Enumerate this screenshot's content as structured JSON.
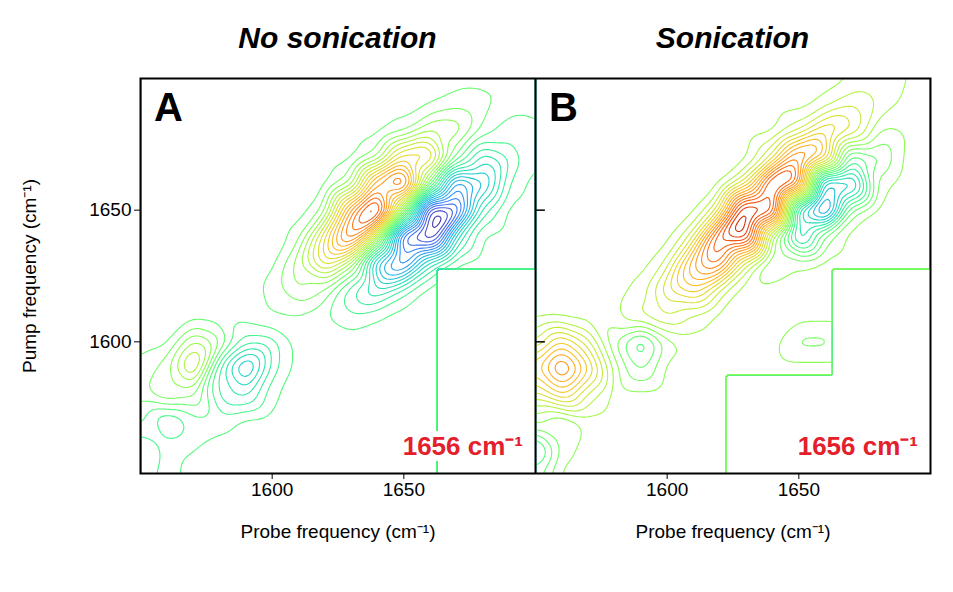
{
  "chart_data": [
    {
      "type": "contour",
      "title": "No sonication",
      "panel": "A",
      "annotation": "1656 cm⁻¹",
      "xlabel": "Probe frequency (cm⁻¹)",
      "ylabel": "Pump frequency (cm⁻¹)",
      "xlim": [
        1550,
        1700
      ],
      "ylim": [
        1550,
        1700
      ],
      "xticks": [
        1600,
        1650
      ],
      "yticks": [
        1600,
        1650
      ],
      "color": "turbo",
      "zlim": [
        -1,
        1
      ],
      "x": [
        1550,
        1560,
        1570,
        1580,
        1590,
        1600,
        1610,
        1620,
        1630,
        1640,
        1650,
        1660,
        1670,
        1680,
        1690,
        1700
      ],
      "y": [
        1700,
        1690,
        1680,
        1670,
        1660,
        1650,
        1640,
        1630,
        1620,
        1610,
        1600,
        1590,
        1580,
        1570,
        1560,
        1550
      ],
      "z": [
        [
          -0.15,
          -0.15,
          -0.15,
          -0.15,
          -0.15,
          -0.15,
          -0.15,
          -0.15,
          -0.15,
          -0.15,
          -0.15,
          -0.15,
          -0.15,
          -0.14,
          -0.14,
          -0.15
        ],
        [
          -0.15,
          -0.15,
          -0.15,
          -0.15,
          -0.15,
          -0.15,
          -0.15,
          -0.15,
          -0.15,
          -0.15,
          -0.15,
          -0.13,
          -0.09,
          -0.11,
          -0.15,
          -0.16
        ],
        [
          -0.15,
          -0.15,
          -0.15,
          -0.15,
          -0.15,
          -0.15,
          -0.15,
          -0.15,
          -0.15,
          -0.15,
          -0.1,
          0.04,
          0.02,
          -0.15,
          -0.21,
          -0.18
        ],
        [
          -0.15,
          -0.15,
          -0.15,
          -0.15,
          -0.15,
          -0.15,
          -0.15,
          -0.15,
          -0.15,
          -0.06,
          0.28,
          0.3,
          -0.13,
          -0.37,
          -0.27,
          -0.17
        ],
        [
          -0.15,
          -0.15,
          -0.15,
          -0.15,
          -0.15,
          -0.15,
          -0.15,
          -0.15,
          -0.05,
          0.47,
          0.66,
          -0.08,
          -0.69,
          -0.52,
          -0.21,
          -0.15
        ],
        [
          -0.15,
          -0.15,
          -0.15,
          -0.15,
          -0.15,
          -0.15,
          -0.15,
          -0.07,
          0.45,
          0.81,
          0,
          -0.94,
          -0.86,
          -0.29,
          -0.15,
          -0.15
        ],
        [
          -0.15,
          -0.15,
          -0.15,
          -0.15,
          -0.15,
          -0.15,
          -0.11,
          0.23,
          0.6,
          0.05,
          -0.85,
          -0.98,
          -0.36,
          -0.16,
          -0.15,
          -0.15
        ],
        [
          -0.15,
          -0.15,
          -0.15,
          -0.15,
          -0.15,
          -0.15,
          0.01,
          0.24,
          0.01,
          -0.53,
          -0.74,
          -0.34,
          -0.16,
          -0.15,
          -0.15,
          -0.15
        ],
        [
          -0.15,
          -0.15,
          -0.15,
          -0.15,
          -0.15,
          -0.11,
          -0.01,
          -0.07,
          -0.27,
          -0.4,
          -0.25,
          -0.15,
          -0.15,
          -0.15,
          -0.15,
          -0.15
        ],
        [
          -0.15,
          -0.15,
          -0.15,
          -0.15,
          -0.15,
          -0.12,
          -0.13,
          -0.17,
          -0.22,
          -0.18,
          -0.15,
          -0.15,
          -0.15,
          -0.15,
          -0.15,
          -0.15
        ],
        [
          -0.15,
          -0.15,
          0.05,
          -0.05,
          -0.25,
          -0.25,
          -0.15,
          -0.16,
          -0.15,
          -0.15,
          -0.15,
          -0.15,
          -0.15,
          -0.15,
          -0.15,
          -0.15
        ],
        [
          -0.12,
          -0.05,
          0.2,
          -0.3,
          -0.55,
          -0.25,
          -0.15,
          -0.15,
          -0.15,
          -0.15,
          -0.15,
          -0.15,
          -0.15,
          -0.15,
          -0.15,
          -0.15
        ],
        [
          -0.1,
          0,
          -0.05,
          -0.3,
          -0.35,
          -0.18,
          -0.15,
          -0.15,
          -0.15,
          -0.15,
          -0.15,
          -0.15,
          -0.15,
          -0.15,
          -0.15,
          -0.15
        ],
        [
          -0.15,
          -0.3,
          -0.2,
          -0.2,
          -0.15,
          -0.15,
          -0.15,
          -0.15,
          -0.15,
          -0.15,
          -0.15,
          -0.15,
          -0.15,
          -0.15,
          -0.15,
          -0.15
        ],
        [
          -0.3,
          -0.2,
          -0.18,
          -0.15,
          -0.15,
          -0.15,
          -0.15,
          -0.15,
          -0.15,
          -0.15,
          -0.15,
          -0.15,
          -0.15,
          -0.15,
          -0.15,
          -0.15
        ],
        [
          -0.25,
          -0.2,
          -0.15,
          -0.15,
          -0.15,
          -0.15,
          -0.15,
          -0.15,
          -0.15,
          -0.15,
          -0.15,
          -0.15,
          -0.15,
          -0.15,
          -0.15,
          -0.15
        ]
      ]
    },
    {
      "type": "contour",
      "title": "Sonication",
      "panel": "B",
      "annotation": "1656 cm⁻¹",
      "xlabel": "Probe frequency (cm⁻¹)",
      "tick_labels": "x",
      "xlim": [
        1550,
        1700
      ],
      "ylim": [
        1550,
        1700
      ],
      "xticks": [
        1600,
        1650
      ],
      "yticks": [
        1600,
        1650
      ],
      "color": "turbo",
      "zlim": [
        -1,
        1
      ],
      "x": [
        1550,
        1560,
        1570,
        1580,
        1590,
        1600,
        1610,
        1620,
        1630,
        1640,
        1650,
        1660,
        1670,
        1680,
        1690,
        1700
      ],
      "y": [
        1700,
        1690,
        1680,
        1670,
        1660,
        1650,
        1640,
        1630,
        1620,
        1610,
        1600,
        1590,
        1580,
        1570,
        1560,
        1550
      ],
      "z": [
        [
          0,
          0,
          0,
          0,
          0,
          0,
          0,
          0,
          0,
          0,
          0,
          0,
          0.02,
          0.04,
          0.03,
          0
        ],
        [
          0,
          0,
          0,
          0,
          0,
          0,
          0,
          0,
          0,
          0,
          0,
          0.05,
          0.13,
          0.07,
          0.01,
          0
        ],
        [
          0,
          0,
          0,
          0,
          0,
          0,
          0,
          0,
          0,
          0,
          0.11,
          0.31,
          0.19,
          -0.03,
          -0.02,
          0
        ],
        [
          0,
          0,
          0,
          0,
          0,
          0,
          0,
          0,
          0,
          0.17,
          0.55,
          0.36,
          -0.25,
          -0.15,
          -0.01,
          0
        ],
        [
          0,
          0,
          0,
          0,
          0,
          0,
          0,
          0,
          0.21,
          0.77,
          0.58,
          -0.59,
          -0.54,
          -0.04,
          0,
          0
        ],
        [
          0,
          0,
          0,
          0,
          0,
          0,
          0,
          0.2,
          0.84,
          0.77,
          -0.47,
          -0.77,
          -0.1,
          0,
          0,
          0
        ],
        [
          0,
          0,
          0,
          0,
          0,
          0,
          0.15,
          0.7,
          0.78,
          -0.04,
          -0.45,
          -0.09,
          0,
          0,
          0,
          0
        ],
        [
          0,
          0,
          0,
          0,
          0,
          0.08,
          0.45,
          0.58,
          0.13,
          -0.11,
          -0.03,
          0,
          0,
          0,
          0,
          0
        ],
        [
          0,
          0,
          0,
          0,
          0.04,
          0.23,
          0.33,
          0.11,
          -0.01,
          0,
          0,
          0,
          0,
          0,
          0,
          0
        ],
        [
          0,
          0,
          0,
          0.01,
          0.09,
          0.14,
          0.06,
          0,
          0,
          0,
          0,
          0,
          0,
          0,
          0,
          0
        ],
        [
          0.1,
          0.3,
          0.15,
          -0.08,
          -0.25,
          -0.05,
          0,
          0,
          0,
          0,
          -0.1,
          -0.1,
          0,
          0,
          0,
          0
        ],
        [
          0.3,
          0.55,
          0.3,
          0,
          -0.15,
          0,
          0,
          0,
          0,
          0,
          0,
          0,
          0,
          0,
          0,
          0
        ],
        [
          0.15,
          0.3,
          0.1,
          0,
          0,
          0,
          0,
          0,
          0,
          0,
          0,
          0,
          0,
          0,
          0,
          0
        ],
        [
          0,
          -0.1,
          0,
          0,
          0,
          0,
          0,
          0,
          0,
          0,
          0,
          0,
          0,
          0,
          0,
          0
        ],
        [
          -0.3,
          -0.05,
          0,
          0,
          0,
          0,
          0,
          0,
          0,
          0,
          0,
          0,
          0,
          0,
          0,
          0
        ],
        [
          -0.15,
          0,
          0,
          0,
          0,
          0,
          0,
          0,
          0,
          0,
          0,
          0,
          0,
          0,
          0,
          0
        ]
      ]
    }
  ]
}
